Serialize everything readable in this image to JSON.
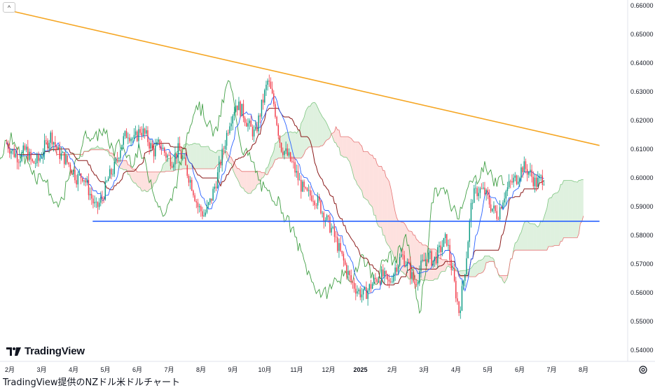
{
  "collapse_button": {
    "icon": "chevron-up-icon",
    "glyph": "^"
  },
  "logo": {
    "text": "TradingView",
    "icon": "tradingview-logo-icon"
  },
  "footer": {
    "caption": "TradingView提供のNZドル米ドルチャート"
  },
  "settings_icon": "gear-icon",
  "chart_data": {
    "type": "candlestick",
    "symbol_pair": "NZD/USD",
    "y_axis": {
      "ticks": [
        "0.66000",
        "0.65000",
        "0.64000",
        "0.63000",
        "0.62000",
        "0.61000",
        "0.60000",
        "0.59000",
        "0.58000",
        "0.57000",
        "0.56000",
        "0.55000",
        "0.54000"
      ],
      "range": [
        0.54,
        0.66
      ]
    },
    "x_axis": {
      "ticks": [
        {
          "label": "2月",
          "month_index": 1
        },
        {
          "label": "3月",
          "month_index": 2
        },
        {
          "label": "4月",
          "month_index": 3
        },
        {
          "label": "5月",
          "month_index": 4
        },
        {
          "label": "6月",
          "month_index": 5
        },
        {
          "label": "7月",
          "month_index": 6
        },
        {
          "label": "8月",
          "month_index": 7
        },
        {
          "label": "9月",
          "month_index": 8
        },
        {
          "label": "10月",
          "month_index": 9
        },
        {
          "label": "11月",
          "month_index": 10
        },
        {
          "label": "12月",
          "month_index": 11
        },
        {
          "label": "2025",
          "month_index": 12,
          "bold": true
        },
        {
          "label": "2月",
          "month_index": 13
        },
        {
          "label": "3月",
          "month_index": 14
        },
        {
          "label": "4月",
          "month_index": 15
        },
        {
          "label": "5月",
          "month_index": 16
        },
        {
          "label": "6月",
          "month_index": 17
        },
        {
          "label": "7月",
          "month_index": 18
        },
        {
          "label": "8月",
          "month_index": 19
        }
      ]
    },
    "lines": [
      {
        "name": "downtrend-line",
        "color": "#f5a623",
        "points": [
          [
            0.9,
            0.6585
          ],
          [
            19.5,
            0.6113
          ]
        ]
      },
      {
        "name": "support-line",
        "color": "#2962ff",
        "points": [
          [
            3.6,
            0.5849
          ],
          [
            19.5,
            0.5849
          ]
        ]
      }
    ],
    "close_series": [
      [
        0.9,
        0.612
      ],
      [
        1.1,
        0.609
      ],
      [
        1.3,
        0.607
      ],
      [
        1.5,
        0.61
      ],
      [
        1.7,
        0.605
      ],
      [
        1.9,
        0.606
      ],
      [
        2.1,
        0.611
      ],
      [
        2.3,
        0.615
      ],
      [
        2.5,
        0.609
      ],
      [
        2.7,
        0.607
      ],
      [
        2.9,
        0.604
      ],
      [
        3.1,
        0.6
      ],
      [
        3.3,
        0.601
      ],
      [
        3.5,
        0.595
      ],
      [
        3.7,
        0.589
      ],
      [
        3.9,
        0.593
      ],
      [
        4.1,
        0.6
      ],
      [
        4.3,
        0.604
      ],
      [
        4.5,
        0.612
      ],
      [
        4.7,
        0.616
      ],
      [
        4.9,
        0.613
      ],
      [
        5.1,
        0.617
      ],
      [
        5.3,
        0.614
      ],
      [
        5.5,
        0.609
      ],
      [
        5.7,
        0.612
      ],
      [
        5.9,
        0.608
      ],
      [
        6.1,
        0.606
      ],
      [
        6.3,
        0.61
      ],
      [
        6.5,
        0.604
      ],
      [
        6.7,
        0.598
      ],
      [
        6.9,
        0.59
      ],
      [
        7.1,
        0.587
      ],
      [
        7.3,
        0.592
      ],
      [
        7.5,
        0.6
      ],
      [
        7.7,
        0.61
      ],
      [
        7.9,
        0.62
      ],
      [
        8.1,
        0.626
      ],
      [
        8.3,
        0.623
      ],
      [
        8.5,
        0.618
      ],
      [
        8.7,
        0.615
      ],
      [
        8.9,
        0.625
      ],
      [
        9.1,
        0.634
      ],
      [
        9.3,
        0.625
      ],
      [
        9.5,
        0.611
      ],
      [
        9.7,
        0.608
      ],
      [
        9.9,
        0.604
      ],
      [
        10.1,
        0.598
      ],
      [
        10.3,
        0.594
      ],
      [
        10.5,
        0.594
      ],
      [
        10.7,
        0.591
      ],
      [
        10.9,
        0.586
      ],
      [
        11.1,
        0.582
      ],
      [
        11.3,
        0.576
      ],
      [
        11.5,
        0.57
      ],
      [
        11.7,
        0.564
      ],
      [
        11.9,
        0.561
      ],
      [
        12.1,
        0.559
      ],
      [
        12.3,
        0.562
      ],
      [
        12.5,
        0.565
      ],
      [
        12.7,
        0.566
      ],
      [
        12.9,
        0.563
      ],
      [
        13.1,
        0.569
      ],
      [
        13.3,
        0.573
      ],
      [
        13.5,
        0.569
      ],
      [
        13.7,
        0.563
      ],
      [
        13.9,
        0.569
      ],
      [
        14.1,
        0.573
      ],
      [
        14.3,
        0.571
      ],
      [
        14.5,
        0.575
      ],
      [
        14.7,
        0.579
      ],
      [
        14.9,
        0.566
      ],
      [
        15.1,
        0.553
      ],
      [
        15.3,
        0.57
      ],
      [
        15.5,
        0.593
      ],
      [
        15.7,
        0.596
      ],
      [
        15.9,
        0.595
      ],
      [
        16.1,
        0.59
      ],
      [
        16.3,
        0.587
      ],
      [
        16.5,
        0.594
      ],
      [
        16.7,
        0.598
      ],
      [
        16.9,
        0.6
      ],
      [
        17.1,
        0.604
      ],
      [
        17.3,
        0.602
      ],
      [
        17.5,
        0.598
      ],
      [
        17.7,
        0.6
      ]
    ]
  }
}
